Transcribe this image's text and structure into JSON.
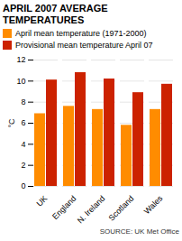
{
  "chart_data": {
    "type": "bar",
    "title": "APRIL 2007 AVERAGE\nTEMPERATURES",
    "categories": [
      "UK",
      "England",
      "N. Ireland",
      "Scotland",
      "Wales"
    ],
    "series": [
      {
        "name": "April mean temperature (1971-2000)",
        "color": "#FF8C00",
        "values": [
          6.9,
          7.6,
          7.3,
          5.8,
          7.3
        ]
      },
      {
        "name": "Provisional mean temperature April 07",
        "color": "#CC2200",
        "values": [
          10.1,
          10.8,
          10.2,
          8.9,
          9.7
        ]
      }
    ],
    "ylabel": "°C",
    "ylim": [
      0,
      12
    ],
    "yticks": [
      0,
      2,
      4,
      6,
      8,
      10,
      12
    ],
    "grid": true,
    "legend": "upper left",
    "source": "SOURCE: UK Met Office"
  }
}
